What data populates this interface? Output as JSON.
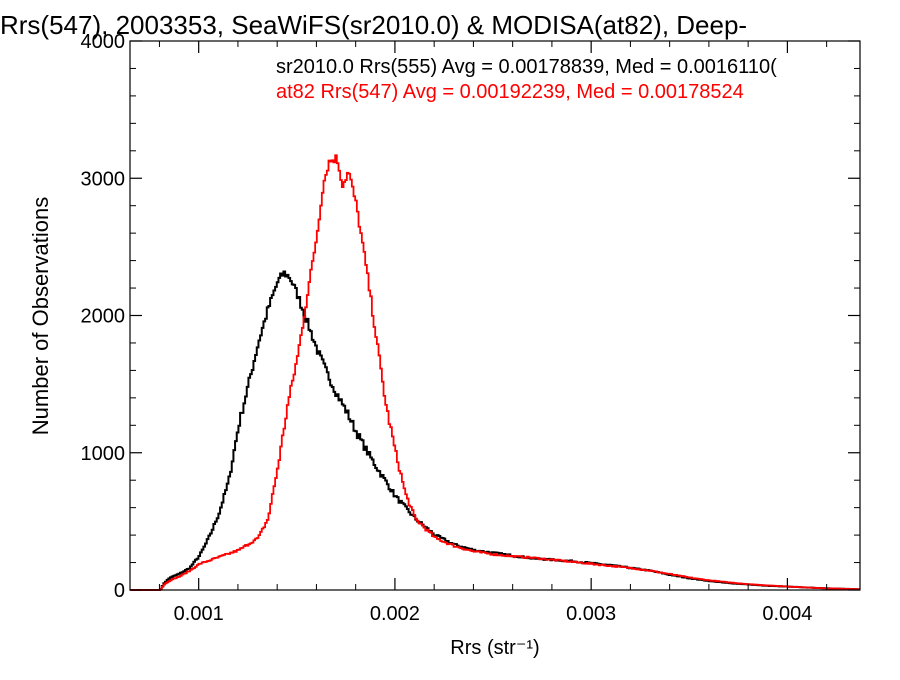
{
  "chart_data": {
    "type": "line",
    "title": "Rrs(547), 2003353, SeaWiFS(sr2010.0) & MODISA(at82), Deep-",
    "xlabel": "Rrs (str⁻¹)",
    "ylabel": "Number of Observations",
    "xlim": [
      0.00065,
      0.00437
    ],
    "ylim": [
      0,
      4000
    ],
    "x_ticks": [
      0.001,
      0.002,
      0.003,
      0.004
    ],
    "x_tick_labels": [
      "0.001",
      "0.002",
      "0.003",
      "0.004"
    ],
    "y_ticks": [
      0,
      1000,
      2000,
      3000,
      4000
    ],
    "y_tick_labels": [
      "0",
      "1000",
      "2000",
      "3000",
      "4000"
    ],
    "grid": false,
    "annotations": [
      {
        "text": "sr2010.0 Rrs(555) Avg = 0.00178839, Med = 0.0016110(",
        "color": "#000000"
      },
      {
        "text": "at82 Rrs(547) Avg = 0.00192239, Med = 0.00178524",
        "color": "#ff0000"
      }
    ],
    "series": [
      {
        "color": "#000000",
        "x": [
          0.00065,
          0.0008,
          0.00082,
          0.00085,
          0.0009,
          0.00095,
          0.001,
          0.00103,
          0.00106,
          0.0011,
          0.00115,
          0.0012,
          0.00125,
          0.0013,
          0.00135,
          0.0014,
          0.00143,
          0.00146,
          0.0015,
          0.00155,
          0.0016,
          0.00165,
          0.0017,
          0.00175,
          0.0018,
          0.00185,
          0.0019,
          0.002,
          0.0021,
          0.0022,
          0.0023,
          0.0024,
          0.0025,
          0.0026,
          0.0027,
          0.0028,
          0.0029,
          0.003,
          0.0031,
          0.0032,
          0.0033,
          0.0034,
          0.0035,
          0.0036,
          0.0037,
          0.0038,
          0.0039,
          0.004,
          0.0041,
          0.0042,
          0.0043,
          0.00437
        ],
        "y": [
          0,
          0,
          50,
          90,
          120,
          160,
          250,
          330,
          420,
          560,
          800,
          1200,
          1500,
          1800,
          2050,
          2250,
          2310,
          2280,
          2150,
          1950,
          1750,
          1580,
          1430,
          1300,
          1150,
          1020,
          900,
          680,
          520,
          400,
          330,
          290,
          270,
          250,
          230,
          220,
          210,
          195,
          180,
          160,
          140,
          110,
          85,
          65,
          50,
          40,
          30,
          25,
          18,
          12,
          8,
          5
        ]
      },
      {
        "color": "#ff0000",
        "x": [
          0.00065,
          0.0008,
          0.00082,
          0.00085,
          0.0009,
          0.00095,
          0.001,
          0.0011,
          0.0012,
          0.0013,
          0.00135,
          0.0014,
          0.00145,
          0.0015,
          0.00155,
          0.0016,
          0.00163,
          0.00166,
          0.0017,
          0.00173,
          0.00176,
          0.0018,
          0.00185,
          0.0019,
          0.00195,
          0.002,
          0.00205,
          0.0021,
          0.0022,
          0.0023,
          0.0024,
          0.0025,
          0.0026,
          0.0027,
          0.0028,
          0.0029,
          0.003,
          0.0031,
          0.0032,
          0.0033,
          0.0034,
          0.0035,
          0.0036,
          0.0037,
          0.0038,
          0.0039,
          0.004,
          0.0041,
          0.0042,
          0.0043,
          0.00437
        ],
        "y": [
          0,
          0,
          40,
          70,
          100,
          140,
          190,
          240,
          290,
          380,
          520,
          900,
          1350,
          1700,
          2150,
          2600,
          2950,
          3120,
          3150,
          2950,
          3050,
          2800,
          2350,
          1850,
          1350,
          1000,
          700,
          520,
          380,
          320,
          280,
          260,
          245,
          235,
          220,
          205,
          190,
          175,
          160,
          140,
          115,
          90,
          70,
          55,
          42,
          33,
          25,
          18,
          12,
          8,
          5
        ]
      }
    ]
  }
}
